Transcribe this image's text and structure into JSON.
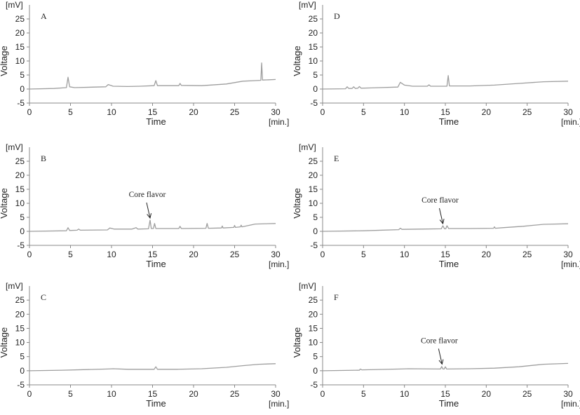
{
  "chart_data": [
    {
      "type": "line",
      "panel_label": "A",
      "unit_label": "[mV]",
      "ylabel": "Voltage",
      "xlabel": "Time",
      "x_unit_label": "[min.]",
      "xlim": [
        0,
        30
      ],
      "ylim": [
        -5,
        30
      ],
      "xticks": [
        "0",
        "5",
        "10",
        "15",
        "20",
        "25",
        "30"
      ],
      "yticks": [
        "-5",
        "0",
        "5",
        "10",
        "15",
        "20",
        "25"
      ],
      "line_color": "#9e9e9e",
      "annotation": null,
      "series": [
        {
          "points": [
            [
              0,
              0
            ],
            [
              3,
              0.2
            ],
            [
              4.5,
              0.5
            ],
            [
              4.7,
              4.2
            ],
            [
              4.9,
              0.8
            ],
            [
              5.5,
              0.5
            ],
            [
              9.3,
              0.8
            ],
            [
              9.6,
              1.6
            ],
            [
              10.2,
              1.0
            ],
            [
              12,
              0.9
            ],
            [
              13.5,
              1.0
            ],
            [
              15.2,
              1.2
            ],
            [
              15.4,
              3.0
            ],
            [
              15.6,
              1.2
            ],
            [
              18.2,
              1.2
            ],
            [
              18.35,
              2.0
            ],
            [
              18.5,
              1.3
            ],
            [
              21,
              1.2
            ],
            [
              24,
              1.8
            ],
            [
              26,
              2.8
            ],
            [
              28.2,
              3.1
            ],
            [
              28.3,
              9.3
            ],
            [
              28.4,
              3.2
            ],
            [
              30,
              3.4
            ]
          ]
        }
      ]
    },
    {
      "type": "line",
      "panel_label": "B",
      "unit_label": "[mV]",
      "ylabel": "Voltage",
      "xlabel": "Time",
      "x_unit_label": "[min.]",
      "xlim": [
        0,
        30
      ],
      "ylim": [
        -5,
        30
      ],
      "xticks": [
        "0",
        "5",
        "10",
        "15",
        "20",
        "25",
        "30"
      ],
      "yticks": [
        "-5",
        "0",
        "5",
        "10",
        "15",
        "20",
        "25"
      ],
      "line_color": "#9e9e9e",
      "annotation": {
        "text": "Core flavor",
        "x": 14.7,
        "y": 4.0
      },
      "series": [
        {
          "points": [
            [
              0,
              0
            ],
            [
              4.5,
              0.2
            ],
            [
              4.7,
              1.3
            ],
            [
              4.9,
              0.3
            ],
            [
              5.8,
              0.4
            ],
            [
              6.0,
              0.8
            ],
            [
              6.2,
              0.4
            ],
            [
              9.5,
              0.5
            ],
            [
              9.8,
              1.2
            ],
            [
              10.3,
              0.8
            ],
            [
              12.5,
              0.8
            ],
            [
              13,
              1.3
            ],
            [
              13.2,
              0.8
            ],
            [
              14.5,
              0.9
            ],
            [
              14.7,
              4.0
            ],
            [
              14.85,
              1.0
            ],
            [
              15.1,
              1.0
            ],
            [
              15.25,
              2.8
            ],
            [
              15.4,
              1.0
            ],
            [
              18.2,
              1.0
            ],
            [
              18.35,
              1.8
            ],
            [
              18.5,
              1.0
            ],
            [
              21.5,
              1.1
            ],
            [
              21.65,
              2.8
            ],
            [
              21.8,
              1.1
            ],
            [
              23.4,
              1.2
            ],
            [
              23.5,
              1.9
            ],
            [
              23.6,
              1.2
            ],
            [
              24.9,
              1.4
            ],
            [
              25.0,
              2.1
            ],
            [
              25.1,
              1.4
            ],
            [
              25.7,
              1.6
            ],
            [
              25.8,
              2.2
            ],
            [
              25.9,
              1.6
            ],
            [
              27.5,
              2.6
            ],
            [
              30,
              2.8
            ]
          ]
        }
      ]
    },
    {
      "type": "line",
      "panel_label": "C",
      "unit_label": "[mV]",
      "ylabel": "Voltage",
      "xlabel": "Time",
      "x_unit_label": "[min.]",
      "xlim": [
        0,
        30
      ],
      "ylim": [
        -5,
        30
      ],
      "xticks": [
        "0",
        "5",
        "10",
        "15",
        "20",
        "25",
        "30"
      ],
      "yticks": [
        "-5",
        "0",
        "5",
        "10",
        "15",
        "20",
        "25"
      ],
      "line_color": "#9e9e9e",
      "annotation": null,
      "series": [
        {
          "points": [
            [
              0,
              0
            ],
            [
              4,
              0.2
            ],
            [
              7,
              0.4
            ],
            [
              9.5,
              0.6
            ],
            [
              10.2,
              0.7
            ],
            [
              12,
              0.5
            ],
            [
              15.2,
              0.5
            ],
            [
              15.4,
              1.4
            ],
            [
              15.6,
              0.5
            ],
            [
              18,
              0.5
            ],
            [
              21,
              0.7
            ],
            [
              24,
              1.2
            ],
            [
              26,
              1.8
            ],
            [
              28,
              2.3
            ],
            [
              30,
              2.5
            ]
          ]
        }
      ]
    },
    {
      "type": "line",
      "panel_label": "D",
      "unit_label": "[mV]",
      "ylabel": "Voltage",
      "xlabel": "Time",
      "x_unit_label": "[min.]",
      "xlim": [
        0,
        30
      ],
      "ylim": [
        -5,
        30
      ],
      "xticks": [
        "0",
        "5",
        "10",
        "15",
        "20",
        "25",
        "30"
      ],
      "yticks": [
        "-5",
        "0",
        "5",
        "10",
        "15",
        "20",
        "25"
      ],
      "line_color": "#9e9e9e",
      "annotation": null,
      "series": [
        {
          "points": [
            [
              0,
              0
            ],
            [
              2.8,
              0.1
            ],
            [
              3.0,
              0.8
            ],
            [
              3.2,
              0.2
            ],
            [
              3.6,
              0.2
            ],
            [
              3.8,
              0.8
            ],
            [
              4.0,
              0.2
            ],
            [
              4.3,
              0.3
            ],
            [
              4.5,
              0.9
            ],
            [
              4.7,
              0.3
            ],
            [
              6,
              0.4
            ],
            [
              9.2,
              0.7
            ],
            [
              9.5,
              2.4
            ],
            [
              10.0,
              1.4
            ],
            [
              11,
              1.0
            ],
            [
              12.8,
              1.0
            ],
            [
              13.0,
              1.5
            ],
            [
              13.2,
              1.0
            ],
            [
              15.2,
              1.0
            ],
            [
              15.35,
              4.8
            ],
            [
              15.5,
              1.1
            ],
            [
              18,
              1.1
            ],
            [
              21,
              1.4
            ],
            [
              24,
              2.0
            ],
            [
              27,
              2.6
            ],
            [
              30,
              2.8
            ]
          ]
        }
      ]
    },
    {
      "type": "line",
      "panel_label": "E",
      "unit_label": "[mV]",
      "ylabel": "Voltage",
      "xlabel": "Time",
      "x_unit_label": "[min.]",
      "xlim": [
        0,
        30
      ],
      "ylim": [
        -5,
        30
      ],
      "xticks": [
        "0",
        "5",
        "10",
        "15",
        "20",
        "25",
        "30"
      ],
      "yticks": [
        "-5",
        "0",
        "5",
        "10",
        "15",
        "20",
        "25"
      ],
      "line_color": "#9e9e9e",
      "annotation": {
        "text": "Core flavor",
        "x": 14.7,
        "y": 2.0
      },
      "series": [
        {
          "points": [
            [
              0,
              0
            ],
            [
              5,
              0.2
            ],
            [
              9.3,
              0.6
            ],
            [
              9.5,
              1.1
            ],
            [
              9.7,
              0.7
            ],
            [
              12,
              0.8
            ],
            [
              14.5,
              0.9
            ],
            [
              14.7,
              2.0
            ],
            [
              14.9,
              0.9
            ],
            [
              15.05,
              0.9
            ],
            [
              15.2,
              2.0
            ],
            [
              15.4,
              1.0
            ],
            [
              18,
              1.0
            ],
            [
              20.9,
              1.1
            ],
            [
              21.0,
              1.6
            ],
            [
              21.1,
              1.1
            ],
            [
              22,
              1.3
            ],
            [
              24.5,
              1.8
            ],
            [
              27,
              2.5
            ],
            [
              30,
              2.7
            ]
          ]
        }
      ]
    },
    {
      "type": "line",
      "panel_label": "F",
      "unit_label": "[mV]",
      "ylabel": "Voltage",
      "xlabel": "Time",
      "x_unit_label": "[min.]",
      "xlim": [
        0,
        30
      ],
      "ylim": [
        -5,
        30
      ],
      "xticks": [
        "0",
        "5",
        "10",
        "15",
        "20",
        "25",
        "30"
      ],
      "yticks": [
        "-5",
        "0",
        "5",
        "10",
        "15",
        "20",
        "25"
      ],
      "line_color": "#9e9e9e",
      "annotation": {
        "text": "Core flavor",
        "x": 14.6,
        "y": 1.6
      },
      "series": [
        {
          "points": [
            [
              0,
              0
            ],
            [
              4.5,
              0.2
            ],
            [
              4.6,
              0.6
            ],
            [
              4.8,
              0.3
            ],
            [
              9.5,
              0.6
            ],
            [
              10.5,
              0.7
            ],
            [
              14.4,
              0.6
            ],
            [
              14.55,
              1.5
            ],
            [
              14.7,
              0.6
            ],
            [
              14.85,
              0.6
            ],
            [
              15.0,
              1.4
            ],
            [
              15.15,
              0.6
            ],
            [
              18,
              0.7
            ],
            [
              21,
              0.9
            ],
            [
              24,
              1.4
            ],
            [
              27,
              2.3
            ],
            [
              30,
              2.6
            ]
          ]
        }
      ]
    }
  ]
}
